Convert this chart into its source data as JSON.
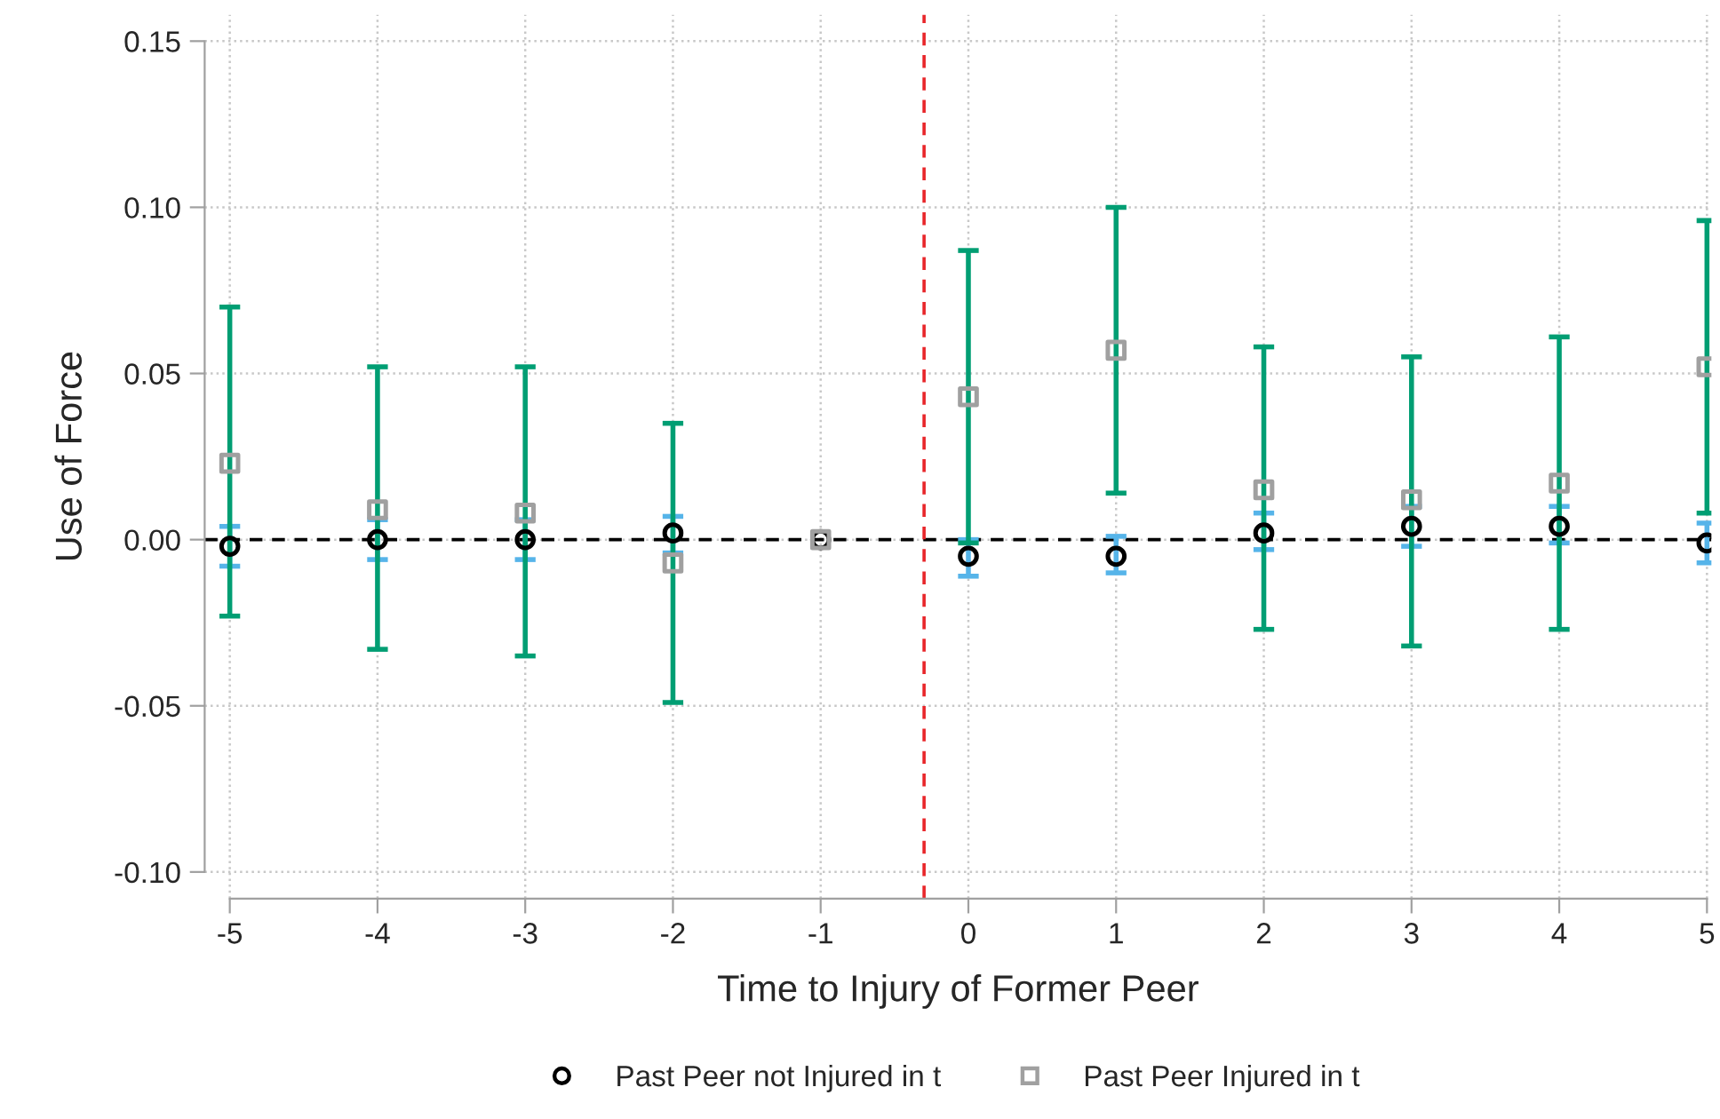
{
  "chart_data": {
    "type": "scatter",
    "xlabel": "Time to Injury of Former Peer",
    "ylabel": "Use of Force",
    "x": [
      -5,
      -4,
      -3,
      -2,
      -1,
      0,
      1,
      2,
      3,
      4,
      5
    ],
    "series": [
      {
        "name": "Past Peer not Injured in t",
        "color": "#000000",
        "marker": "circle",
        "values": [
          -0.002,
          0.0,
          0.0,
          0.002,
          0.0,
          -0.005,
          -0.005,
          0.002,
          0.004,
          0.004,
          -0.001
        ],
        "errors": [
          [
            -0.008,
            0.004
          ],
          [
            -0.006,
            0.006
          ],
          [
            -0.006,
            0.006
          ],
          [
            -0.004,
            0.007
          ],
          null,
          [
            -0.011,
            0.0
          ],
          [
            -0.01,
            0.001
          ],
          [
            -0.003,
            0.008
          ],
          [
            -0.002,
            0.01
          ],
          [
            -0.001,
            0.01
          ],
          [
            -0.007,
            0.005
          ]
        ]
      },
      {
        "name": "Past Peer Injured in t",
        "color": "#a0a0a0",
        "marker": "square",
        "values": [
          0.023,
          0.009,
          0.008,
          -0.007,
          0.0,
          0.043,
          0.057,
          0.015,
          0.012,
          0.017,
          0.052
        ],
        "errors": [
          [
            -0.023,
            0.07
          ],
          [
            -0.033,
            0.052
          ],
          [
            -0.035,
            0.052
          ],
          [
            -0.049,
            0.035
          ],
          null,
          [
            -0.001,
            0.087
          ],
          [
            0.014,
            0.1
          ],
          [
            -0.027,
            0.058
          ],
          [
            -0.032,
            0.055
          ],
          [
            -0.027,
            0.061
          ],
          [
            0.008,
            0.096
          ]
        ]
      }
    ],
    "xlim": [
      -5.17,
      5.03
    ],
    "xticks": [
      -5,
      -4,
      -3,
      -2,
      -1,
      0,
      1,
      2,
      3,
      4,
      5
    ],
    "ylim": [
      -0.108,
      0.158
    ],
    "yticks": [
      {
        "value": -0.1,
        "label": "-0.10"
      },
      {
        "value": -0.05,
        "label": "-0.05"
      },
      {
        "value": 0,
        "label": "0.00"
      },
      {
        "value": 0.05,
        "label": "0.05"
      },
      {
        "value": 0.1,
        "label": "0.10"
      },
      {
        "value": 0.15,
        "label": "0.15"
      }
    ],
    "ref_lines": [
      {
        "axis": "y",
        "value": 0,
        "color": "#000000",
        "line_style": "dashed"
      },
      {
        "axis": "x",
        "value": -0.3,
        "color": "#e8262a",
        "line_style": "dashed"
      }
    ],
    "grid": true,
    "legend": "bottom"
  }
}
